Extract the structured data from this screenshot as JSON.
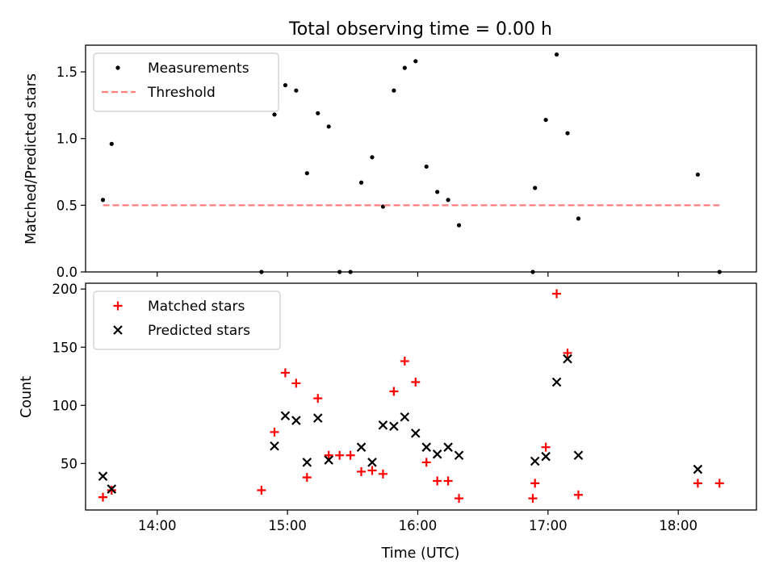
{
  "chart_data": [
    {
      "type": "scatter",
      "title": "Total observing time = 0.00 h",
      "xlabel": "",
      "ylabel": "Matched/Predicted stars",
      "xlim": [
        "13:27",
        "18:36"
      ],
      "ylim": [
        0,
        1.7
      ],
      "yticks": [
        0.0,
        0.5,
        1.0,
        1.5
      ],
      "yticklabels": [
        "0.0",
        "0.5",
        "1.0",
        "1.5"
      ],
      "legend_position": "top-left",
      "series": [
        {
          "name": "Measurements",
          "marker": "dot",
          "color": "#000000",
          "points": [
            {
              "x": "13:35",
              "y": 0.54
            },
            {
              "x": "13:39",
              "y": 0.96
            },
            {
              "x": "14:48",
              "y": 0.0
            },
            {
              "x": "14:54",
              "y": 1.18
            },
            {
              "x": "14:59",
              "y": 1.4
            },
            {
              "x": "15:04",
              "y": 1.36
            },
            {
              "x": "15:09",
              "y": 0.74
            },
            {
              "x": "15:14",
              "y": 1.19
            },
            {
              "x": "15:19",
              "y": 1.09
            },
            {
              "x": "15:24",
              "y": 0.0
            },
            {
              "x": "15:29",
              "y": 0.0
            },
            {
              "x": "15:34",
              "y": 0.67
            },
            {
              "x": "15:39",
              "y": 0.86
            },
            {
              "x": "15:44",
              "y": 0.49
            },
            {
              "x": "15:49",
              "y": 1.36
            },
            {
              "x": "15:54",
              "y": 1.53
            },
            {
              "x": "15:59",
              "y": 1.58
            },
            {
              "x": "16:04",
              "y": 0.79
            },
            {
              "x": "16:09",
              "y": 0.6
            },
            {
              "x": "16:14",
              "y": 0.54
            },
            {
              "x": "16:19",
              "y": 0.35
            },
            {
              "x": "16:53",
              "y": 0.0
            },
            {
              "x": "16:54",
              "y": 0.63
            },
            {
              "x": "16:59",
              "y": 1.14
            },
            {
              "x": "17:04",
              "y": 1.63
            },
            {
              "x": "17:09",
              "y": 1.04
            },
            {
              "x": "17:14",
              "y": 0.4
            },
            {
              "x": "18:09",
              "y": 0.73
            },
            {
              "x": "18:19",
              "y": 0.0
            }
          ]
        },
        {
          "name": "Threshold",
          "marker": "dashed-line",
          "color": "#ff7f7f",
          "points": [
            {
              "x": "13:35",
              "y": 0.5
            },
            {
              "x": "18:19",
              "y": 0.5
            }
          ]
        }
      ]
    },
    {
      "type": "scatter",
      "title": "",
      "xlabel": "Time (UTC)",
      "ylabel": "Count",
      "xlim": [
        "13:27",
        "18:36"
      ],
      "ylim": [
        10,
        205
      ],
      "yticks": [
        50,
        100,
        150,
        200
      ],
      "yticklabels": [
        "50",
        "100",
        "150",
        "200"
      ],
      "xticks": [
        "14:00",
        "15:00",
        "16:00",
        "17:00",
        "18:00"
      ],
      "xticklabels": [
        "14:00",
        "15:00",
        "16:00",
        "17:00",
        "18:00"
      ],
      "legend_position": "top-left",
      "series": [
        {
          "name": "Matched stars",
          "marker": "plus",
          "color": "#ff0000",
          "points": [
            {
              "x": "13:35",
              "y": 21
            },
            {
              "x": "13:39",
              "y": 27
            },
            {
              "x": "14:48",
              "y": 27
            },
            {
              "x": "14:54",
              "y": 77
            },
            {
              "x": "14:59",
              "y": 128
            },
            {
              "x": "15:04",
              "y": 119
            },
            {
              "x": "15:09",
              "y": 38
            },
            {
              "x": "15:14",
              "y": 106
            },
            {
              "x": "15:19",
              "y": 57
            },
            {
              "x": "15:24",
              "y": 57
            },
            {
              "x": "15:29",
              "y": 57
            },
            {
              "x": "15:34",
              "y": 43
            },
            {
              "x": "15:39",
              "y": 44
            },
            {
              "x": "15:44",
              "y": 41
            },
            {
              "x": "15:49",
              "y": 112
            },
            {
              "x": "15:54",
              "y": 138
            },
            {
              "x": "15:59",
              "y": 120
            },
            {
              "x": "16:04",
              "y": 51
            },
            {
              "x": "16:09",
              "y": 35
            },
            {
              "x": "16:14",
              "y": 35
            },
            {
              "x": "16:19",
              "y": 20
            },
            {
              "x": "16:53",
              "y": 20
            },
            {
              "x": "16:54",
              "y": 33
            },
            {
              "x": "16:59",
              "y": 64
            },
            {
              "x": "17:04",
              "y": 196
            },
            {
              "x": "17:09",
              "y": 145
            },
            {
              "x": "17:14",
              "y": 23
            },
            {
              "x": "18:09",
              "y": 33
            },
            {
              "x": "18:19",
              "y": 33
            }
          ]
        },
        {
          "name": "Predicted stars",
          "marker": "x",
          "color": "#000000",
          "points": [
            {
              "x": "13:35",
              "y": 39
            },
            {
              "x": "13:39",
              "y": 28
            },
            {
              "x": "14:54",
              "y": 65
            },
            {
              "x": "14:59",
              "y": 91
            },
            {
              "x": "15:04",
              "y": 87
            },
            {
              "x": "15:09",
              "y": 51
            },
            {
              "x": "15:14",
              "y": 89
            },
            {
              "x": "15:19",
              "y": 53
            },
            {
              "x": "15:34",
              "y": 64
            },
            {
              "x": "15:39",
              "y": 51
            },
            {
              "x": "15:44",
              "y": 83
            },
            {
              "x": "15:49",
              "y": 82
            },
            {
              "x": "15:54",
              "y": 90
            },
            {
              "x": "15:59",
              "y": 76
            },
            {
              "x": "16:04",
              "y": 64
            },
            {
              "x": "16:09",
              "y": 58
            },
            {
              "x": "16:14",
              "y": 64
            },
            {
              "x": "16:19",
              "y": 57
            },
            {
              "x": "16:54",
              "y": 52
            },
            {
              "x": "16:59",
              "y": 56
            },
            {
              "x": "17:04",
              "y": 120
            },
            {
              "x": "17:09",
              "y": 140
            },
            {
              "x": "17:14",
              "y": 57
            },
            {
              "x": "18:09",
              "y": 45
            }
          ]
        }
      ]
    }
  ]
}
